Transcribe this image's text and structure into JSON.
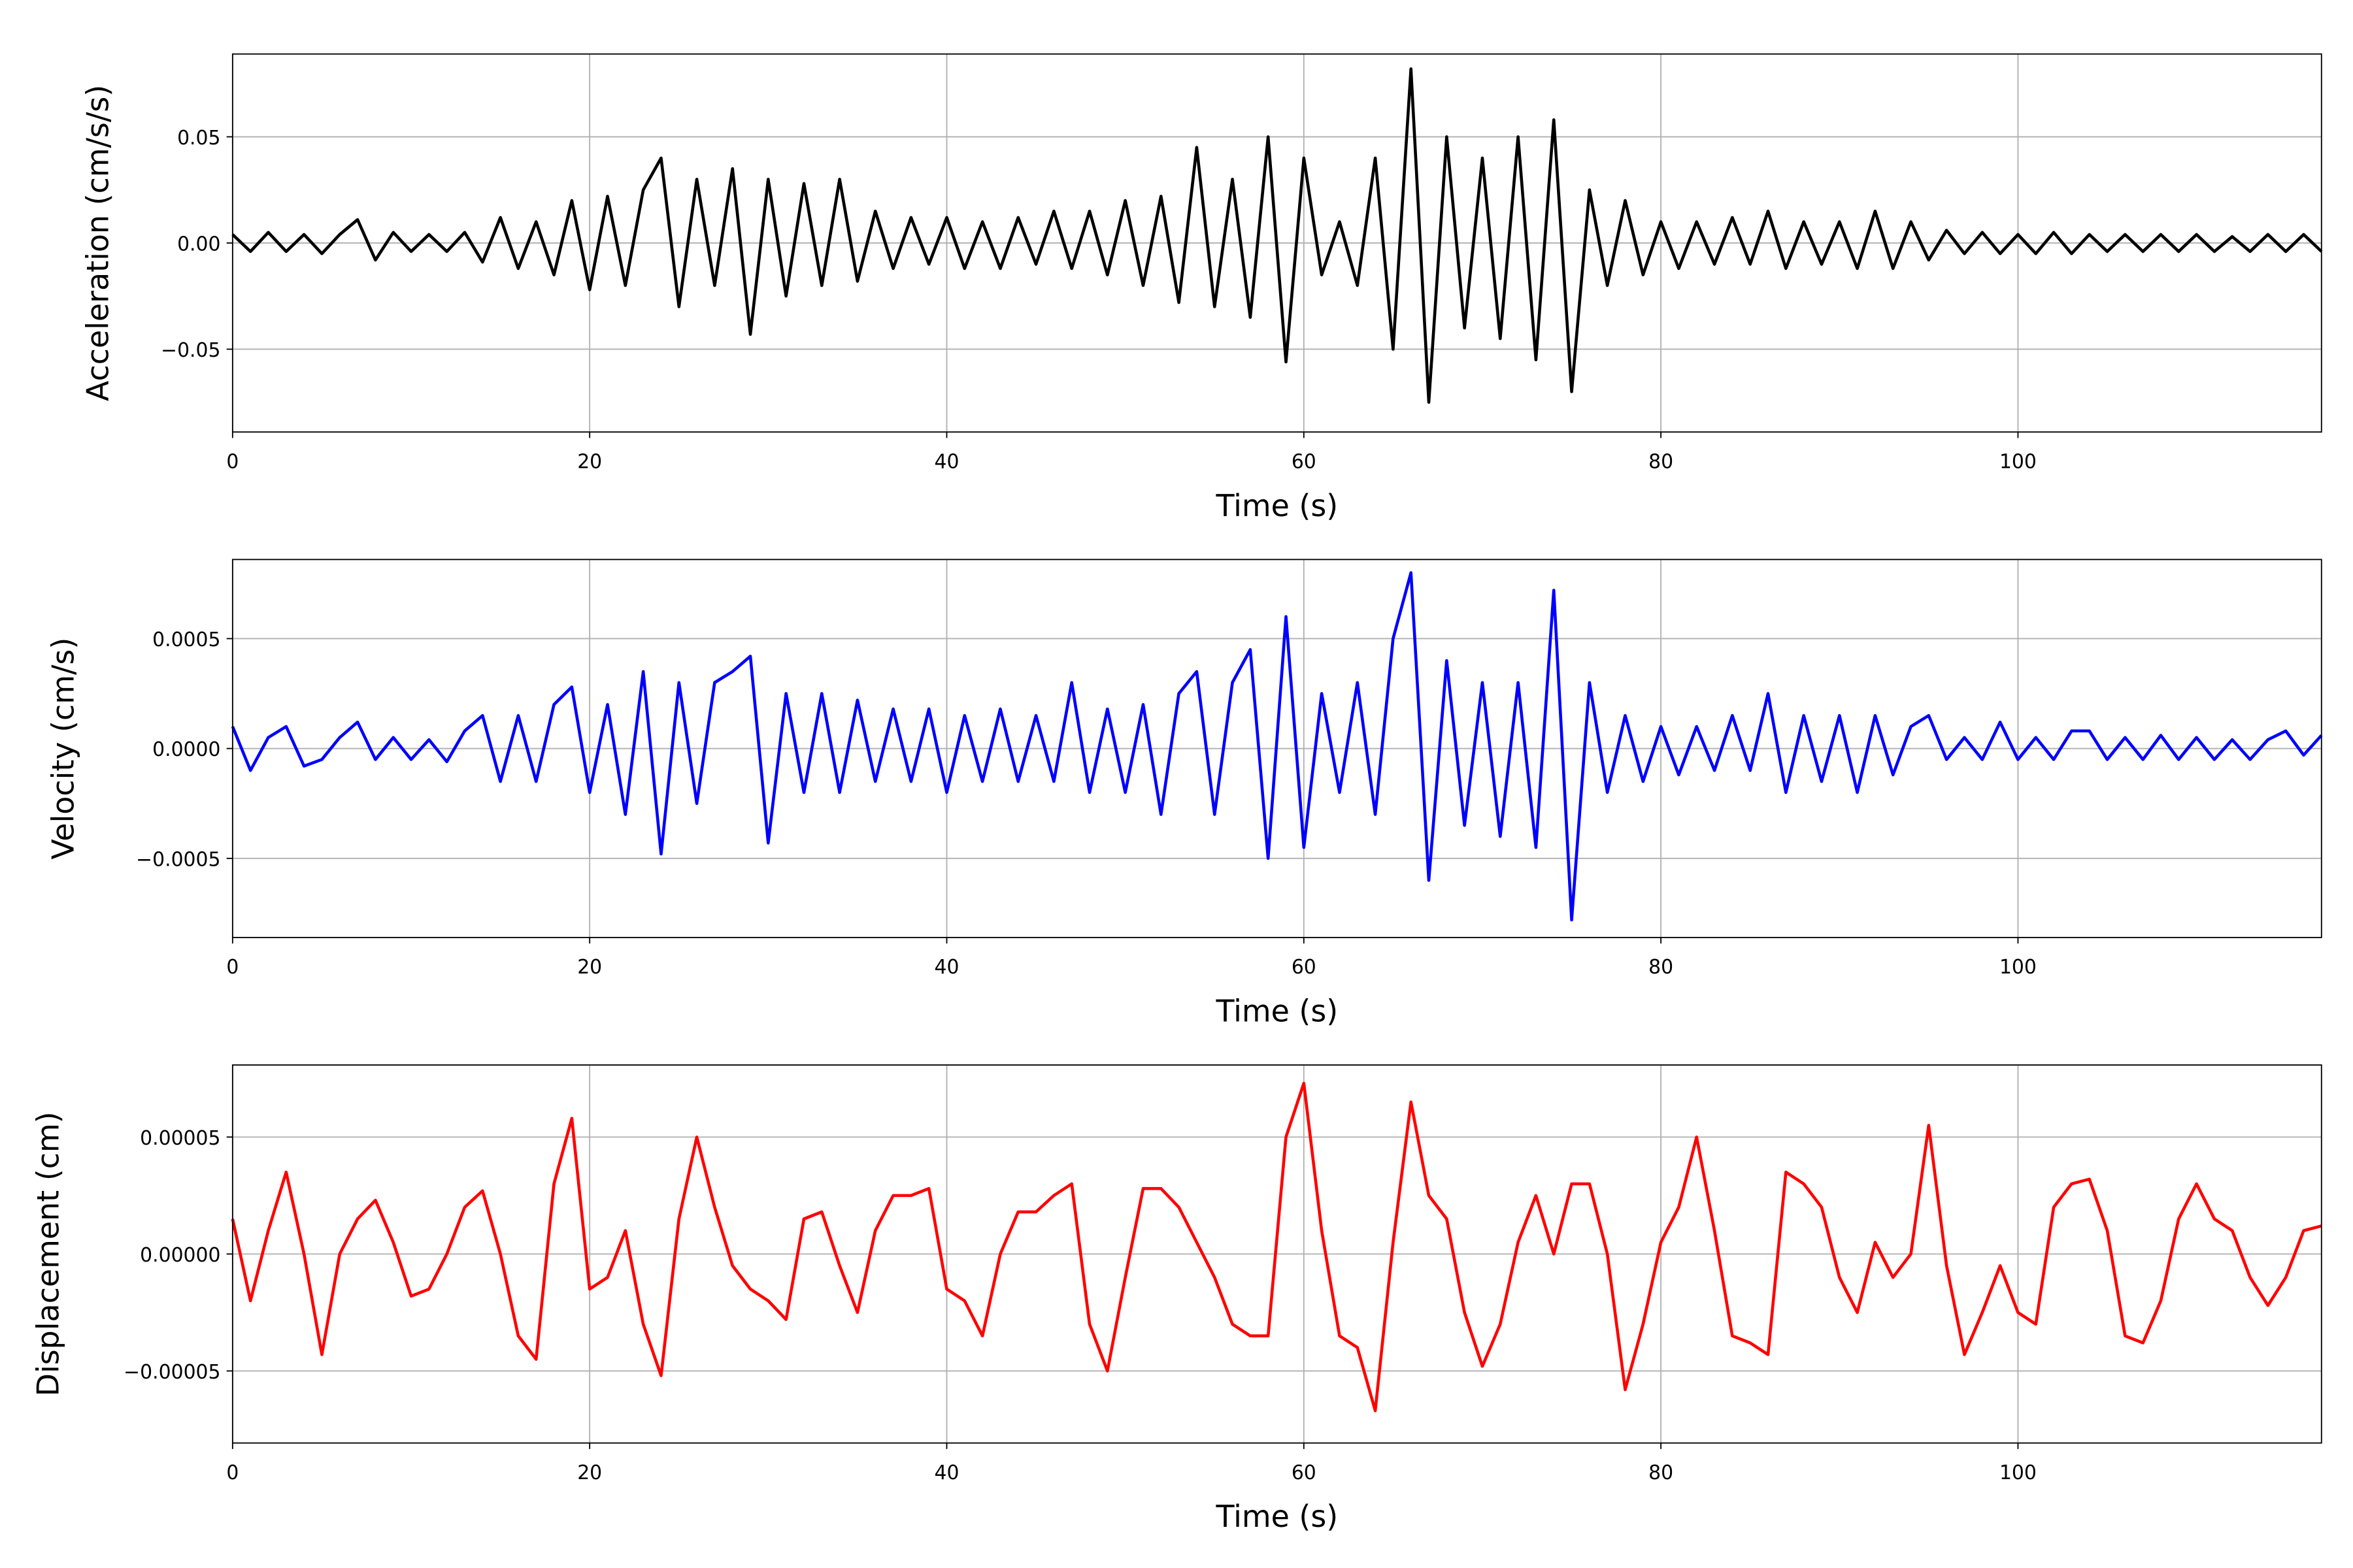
{
  "chart_data": [
    {
      "type": "line",
      "color": "#000000",
      "xlabel": "Time (s)",
      "ylabel": "Acceleration (cm/s/s)",
      "grid": true,
      "xlim": [
        0,
        117
      ],
      "ylim": [
        -0.089,
        0.089
      ],
      "xticks": [
        0,
        20,
        40,
        60,
        80,
        100
      ],
      "yticks": [
        {
          "value": -0.05,
          "label": "−0.05"
        },
        {
          "value": 0,
          "label": "0.00"
        },
        {
          "value": 0.05,
          "label": "0.05"
        }
      ],
      "x": [
        0,
        1,
        2,
        3,
        4,
        5,
        6,
        7,
        8,
        9,
        10,
        11,
        12,
        13,
        14,
        15,
        16,
        17,
        18,
        19,
        20,
        21,
        22,
        23,
        24,
        25,
        26,
        27,
        28,
        29,
        30,
        31,
        32,
        33,
        34,
        35,
        36,
        37,
        38,
        39,
        40,
        41,
        42,
        43,
        44,
        45,
        46,
        47,
        48,
        49,
        50,
        51,
        52,
        53,
        54,
        55,
        56,
        57,
        58,
        59,
        60,
        61,
        62,
        63,
        64,
        65,
        66,
        67,
        68,
        69,
        70,
        71,
        72,
        73,
        74,
        75,
        76,
        77,
        78,
        79,
        80,
        81,
        82,
        83,
        84,
        85,
        86,
        87,
        88,
        89,
        90,
        91,
        92,
        93,
        94,
        95,
        96,
        97,
        98,
        99,
        100,
        101,
        102,
        103,
        104,
        105,
        106,
        107,
        108,
        109,
        110,
        111,
        112,
        113,
        114,
        115,
        116,
        117
      ],
      "values": [
        0.004,
        -0.004,
        0.005,
        -0.004,
        0.004,
        -0.005,
        0.004,
        0.011,
        -0.008,
        0.005,
        -0.004,
        0.004,
        -0.004,
        0.005,
        -0.009,
        0.012,
        -0.012,
        0.01,
        -0.015,
        0.02,
        -0.022,
        0.022,
        -0.02,
        0.025,
        0.04,
        -0.03,
        0.03,
        -0.02,
        0.035,
        -0.043,
        0.03,
        -0.025,
        0.028,
        -0.02,
        0.03,
        -0.018,
        0.015,
        -0.012,
        0.012,
        -0.01,
        0.012,
        -0.012,
        0.01,
        -0.012,
        0.012,
        -0.01,
        0.015,
        -0.012,
        0.015,
        -0.015,
        0.02,
        -0.02,
        0.022,
        -0.028,
        0.045,
        -0.03,
        0.03,
        -0.035,
        0.05,
        -0.056,
        0.04,
        -0.015,
        0.01,
        -0.02,
        0.04,
        -0.05,
        0.082,
        -0.075,
        0.05,
        -0.04,
        0.04,
        -0.045,
        0.05,
        -0.055,
        0.058,
        -0.07,
        0.025,
        -0.02,
        0.02,
        -0.015,
        0.01,
        -0.012,
        0.01,
        -0.01,
        0.012,
        -0.01,
        0.015,
        -0.012,
        0.01,
        -0.01,
        0.01,
        -0.012,
        0.015,
        -0.012,
        0.01,
        -0.008,
        0.006,
        -0.005,
        0.005,
        -0.005,
        0.004,
        -0.005,
        0.005,
        -0.005,
        0.004,
        -0.004,
        0.004,
        -0.004,
        0.004,
        -0.004,
        0.004,
        -0.004,
        0.003,
        -0.004,
        0.004,
        -0.004,
        0.004,
        -0.004
      ]
    },
    {
      "type": "line",
      "color": "#0000ff",
      "xlabel": "Time (s)",
      "ylabel": "Velocity (cm/s)",
      "grid": true,
      "xlim": [
        0,
        117
      ],
      "ylim": [
        -0.00086,
        0.00086
      ],
      "xticks": [
        0,
        20,
        40,
        60,
        80,
        100
      ],
      "yticks": [
        {
          "value": -0.0005,
          "label": "−0.0005"
        },
        {
          "value": 0,
          "label": "0.0000"
        },
        {
          "value": 0.0005,
          "label": "0.0005"
        }
      ],
      "x": [
        0,
        1,
        2,
        3,
        4,
        5,
        6,
        7,
        8,
        9,
        10,
        11,
        12,
        13,
        14,
        15,
        16,
        17,
        18,
        19,
        20,
        21,
        22,
        23,
        24,
        25,
        26,
        27,
        28,
        29,
        30,
        31,
        32,
        33,
        34,
        35,
        36,
        37,
        38,
        39,
        40,
        41,
        42,
        43,
        44,
        45,
        46,
        47,
        48,
        49,
        50,
        51,
        52,
        53,
        54,
        55,
        56,
        57,
        58,
        59,
        60,
        61,
        62,
        63,
        64,
        65,
        66,
        67,
        68,
        69,
        70,
        71,
        72,
        73,
        74,
        75,
        76,
        77,
        78,
        79,
        80,
        81,
        82,
        83,
        84,
        85,
        86,
        87,
        88,
        89,
        90,
        91,
        92,
        93,
        94,
        95,
        96,
        97,
        98,
        99,
        100,
        101,
        102,
        103,
        104,
        105,
        106,
        107,
        108,
        109,
        110,
        111,
        112,
        113,
        114,
        115,
        116,
        117
      ],
      "values": [
        0.0001,
        -0.0001,
        5e-05,
        0.0001,
        -8e-05,
        -5e-05,
        5e-05,
        0.00012,
        -5e-05,
        5e-05,
        -5e-05,
        4e-05,
        -6e-05,
        8e-05,
        0.00015,
        -0.00015,
        0.00015,
        -0.00015,
        0.0002,
        0.00028,
        -0.0002,
        0.0002,
        -0.0003,
        0.00035,
        -0.00048,
        0.0003,
        -0.00025,
        0.0003,
        0.00035,
        0.00042,
        -0.00043,
        0.00025,
        -0.0002,
        0.00025,
        -0.0002,
        0.00022,
        -0.00015,
        0.00018,
        -0.00015,
        0.00018,
        -0.0002,
        0.00015,
        -0.00015,
        0.00018,
        -0.00015,
        0.00015,
        -0.00015,
        0.0003,
        -0.0002,
        0.00018,
        -0.0002,
        0.0002,
        -0.0003,
        0.00025,
        0.00035,
        -0.0003,
        0.0003,
        0.00045,
        -0.0005,
        0.0006,
        -0.00045,
        0.00025,
        -0.0002,
        0.0003,
        -0.0003,
        0.0005,
        0.0008,
        -0.0006,
        0.0004,
        -0.00035,
        0.0003,
        -0.0004,
        0.0003,
        -0.00045,
        0.00072,
        -0.00078,
        0.0003,
        -0.0002,
        0.00015,
        -0.00015,
        0.0001,
        -0.00012,
        0.0001,
        -0.0001,
        0.00015,
        -0.0001,
        0.00025,
        -0.0002,
        0.00015,
        -0.00015,
        0.00015,
        -0.0002,
        0.00015,
        -0.00012,
        0.0001,
        0.00015,
        -5e-05,
        5e-05,
        -5e-05,
        0.00012,
        -5e-05,
        5e-05,
        -5e-05,
        8e-05,
        8e-05,
        -5e-05,
        5e-05,
        -5e-05,
        6e-05,
        -5e-05,
        5e-05,
        -5e-05,
        4e-05,
        -5e-05,
        4e-05,
        8e-05,
        -3e-05,
        6e-05
      ]
    },
    {
      "type": "line",
      "color": "#ff0000",
      "xlabel": "Time (s)",
      "ylabel": "Displacement (cm)",
      "grid": true,
      "xlim": [
        0,
        117
      ],
      "ylim": [
        -8.08e-05,
        8.08e-05
      ],
      "xticks": [
        0,
        20,
        40,
        60,
        80,
        100
      ],
      "yticks": [
        {
          "value": -5e-05,
          "label": "−0.00005"
        },
        {
          "value": 0,
          "label": "0.00000"
        },
        {
          "value": 5e-05,
          "label": "0.00005"
        }
      ],
      "x": [
        0,
        1,
        2,
        3,
        4,
        5,
        6,
        7,
        8,
        9,
        10,
        11,
        12,
        13,
        14,
        15,
        16,
        17,
        18,
        19,
        20,
        21,
        22,
        23,
        24,
        25,
        26,
        27,
        28,
        29,
        30,
        31,
        32,
        33,
        34,
        35,
        36,
        37,
        38,
        39,
        40,
        41,
        42,
        43,
        44,
        45,
        46,
        47,
        48,
        49,
        50,
        51,
        52,
        53,
        54,
        55,
        56,
        57,
        58,
        59,
        60,
        61,
        62,
        63,
        64,
        65,
        66,
        67,
        68,
        69,
        70,
        71,
        72,
        73,
        74,
        75,
        76,
        77,
        78,
        79,
        80,
        81,
        82,
        83,
        84,
        85,
        86,
        87,
        88,
        89,
        90,
        91,
        92,
        93,
        94,
        95,
        96,
        97,
        98,
        99,
        100,
        101,
        102,
        103,
        104,
        105,
        106,
        107,
        108,
        109,
        110,
        111,
        112,
        113,
        114,
        115,
        116,
        117
      ],
      "values": [
        1.5e-05,
        -2e-05,
        1e-05,
        3.5e-05,
        0,
        -4.3e-05,
        0,
        1.5e-05,
        2.3e-05,
        5e-06,
        -1.8e-05,
        -1.5e-05,
        0,
        2e-05,
        2.7e-05,
        0,
        -3.5e-05,
        -4.5e-05,
        3e-05,
        5.8e-05,
        -1.5e-05,
        -1e-05,
        1e-05,
        -3e-05,
        -5.2e-05,
        1.5e-05,
        5e-05,
        2e-05,
        -5e-06,
        -1.5e-05,
        -2e-05,
        -2.8e-05,
        1.5e-05,
        1.8e-05,
        -5e-06,
        -2.5e-05,
        1e-05,
        2.5e-05,
        2.5e-05,
        2.8e-05,
        -1.5e-05,
        -2e-05,
        -3.5e-05,
        0,
        1.8e-05,
        1.8e-05,
        2.5e-05,
        3e-05,
        -3e-05,
        -5e-05,
        -1e-05,
        2.8e-05,
        2.8e-05,
        2e-05,
        5e-06,
        -1e-05,
        -3e-05,
        -3.5e-05,
        -3.5e-05,
        5e-05,
        7.3e-05,
        1e-05,
        -3.5e-05,
        -4e-05,
        -6.7e-05,
        5e-06,
        6.5e-05,
        2.5e-05,
        1.5e-05,
        -2.5e-05,
        -4.8e-05,
        -3e-05,
        5e-06,
        2.5e-05,
        0,
        3e-05,
        3e-05,
        0,
        -5.8e-05,
        -3e-05,
        5e-06,
        2e-05,
        5e-05,
        1e-05,
        -3.5e-05,
        -3.8e-05,
        -4.3e-05,
        3.5e-05,
        3e-05,
        2e-05,
        -1e-05,
        -2.5e-05,
        5e-06,
        -1e-05,
        0,
        5.5e-05,
        -5e-06,
        -4.3e-05,
        -2.5e-05,
        -5e-06,
        -2.5e-05,
        -3e-05,
        2e-05,
        3e-05,
        3.2e-05,
        1e-05,
        -3.5e-05,
        -3.8e-05,
        -2e-05,
        1.5e-05,
        3e-05,
        1.5e-05,
        1e-05,
        -1e-05,
        -2.2e-05,
        -1e-05,
        1e-05,
        1.2e-05
      ]
    }
  ]
}
